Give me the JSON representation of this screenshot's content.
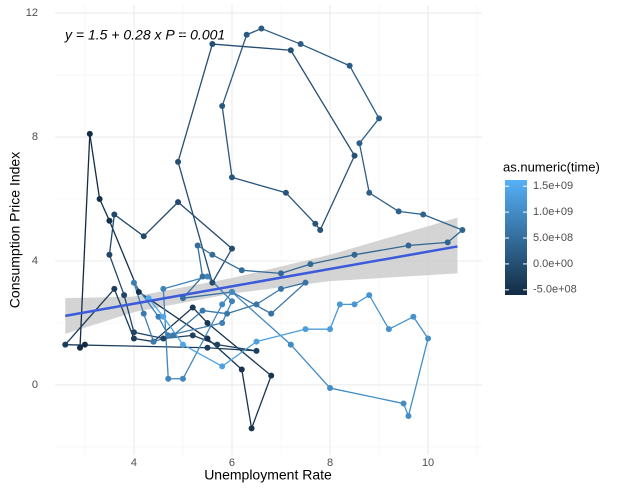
{
  "chart_data": {
    "type": "scatter",
    "annotation": "y = 1.5 + 0.28 x   P = 0.001",
    "xlabel": "Unemployment Rate",
    "ylabel": "Consumption Price Index",
    "xlim": [
      2.39,
      11.1
    ],
    "ylim": [
      -2.26,
      12.26
    ],
    "xticks": [
      4,
      6,
      8,
      10
    ],
    "yticks": [
      0,
      4,
      8,
      12
    ],
    "xminor": [
      3,
      5,
      7,
      9,
      11
    ],
    "yminor": [
      -2,
      2,
      6,
      10
    ],
    "grid": true,
    "x": [
      3.0,
      2.9,
      3.1,
      3.3,
      3.5,
      4.1,
      5.5,
      6.2,
      6.4,
      6.8,
      5.5,
      5.2,
      4.4,
      4.0,
      3.6,
      2.6,
      5.5,
      6.5,
      5.7,
      5.2,
      4.6,
      4.0,
      3.8,
      3.5,
      3.6,
      4.2,
      4.9,
      6.0,
      5.6,
      4.9,
      5.6,
      7.2,
      8.5,
      7.8,
      7.7,
      7.1,
      6.0,
      5.8,
      6.3,
      6.6,
      7.4,
      8.4,
      9.0,
      8.6,
      8.8,
      9.4,
      9.9,
      10.7,
      10.4,
      9.6,
      8.5,
      7.6,
      7.0,
      6.2,
      5.6,
      5.3,
      5.4,
      5.0,
      6.0,
      6.8,
      7.5,
      7.0,
      6.5,
      5.9,
      5.4,
      4.8,
      4.4,
      4.2,
      4.0,
      4.5,
      4.7,
      5.8,
      6.0,
      5.5,
      4.6,
      4.7,
      5.0,
      5.8,
      6.0,
      7.2,
      8.0,
      9.5,
      9.6,
      10.0,
      9.7,
      9.2,
      8.8,
      8.5,
      8.2,
      8.0,
      7.5,
      6.5,
      5.8,
      5.0,
      4.6,
      4.3
    ],
    "y": [
      1.3,
      1.2,
      8.1,
      6.0,
      5.3,
      3.0,
      1.5,
      0.5,
      -1.4,
      0.3,
      2.0,
      2.5,
      1.4,
      1.5,
      3.1,
      1.3,
      1.2,
      1.1,
      1.3,
      1.6,
      1.5,
      1.7,
      2.9,
      4.2,
      5.5,
      4.8,
      5.9,
      4.4,
      3.3,
      7.2,
      11.0,
      10.8,
      7.4,
      5.0,
      5.2,
      6.2,
      6.7,
      9.0,
      11.3,
      11.5,
      11.0,
      10.3,
      8.6,
      7.8,
      6.2,
      5.6,
      5.5,
      5.0,
      4.6,
      4.5,
      4.2,
      3.9,
      3.6,
      3.7,
      4.2,
      4.5,
      3.5,
      2.8,
      3.0,
      2.3,
      3.3,
      3.1,
      2.6,
      2.3,
      2.4,
      1.6,
      1.4,
      2.3,
      3.3,
      2.2,
      1.6,
      2.0,
      2.7,
      3.5,
      3.1,
      0.2,
      0.2,
      2.6,
      3.0,
      1.3,
      -0.1,
      -0.6,
      -1.0,
      1.5,
      2.2,
      1.8,
      2.9,
      2.6,
      2.6,
      1.8,
      1.8,
      1.4,
      0.6,
      1.3,
      2.2,
      2.8
    ],
    "time": [
      -600000000.0,
      -580000000.0,
      -560000000.0,
      -540000000.0,
      -520000000.0,
      -500000000.0,
      -480000000.0,
      -460000000.0,
      -440000000.0,
      -420000000.0,
      -400000000.0,
      -380000000.0,
      -360000000.0,
      -340000000.0,
      -320000000.0,
      -300000000.0,
      -280000000.0,
      -260000000.0,
      -240000000.0,
      -220000000.0,
      -200000000.0,
      -180000000.0,
      -160000000.0,
      -140000000.0,
      -120000000.0,
      -100000000.0,
      -80000000.0,
      -60000000.0,
      -40000000.0,
      -20000000.0,
      0,
      20000000.0,
      40000000.0,
      60000000.0,
      80000000.0,
      100000000.0,
      120000000.0,
      140000000.0,
      160000000.0,
      180000000.0,
      200000000.0,
      220000000.0,
      240000000.0,
      260000000.0,
      280000000.0,
      300000000.0,
      320000000.0,
      340000000.0,
      360000000.0,
      380000000.0,
      400000000.0,
      420000000.0,
      440000000.0,
      460000000.0,
      480000000.0,
      500000000.0,
      520000000.0,
      540000000.0,
      560000000.0,
      580000000.0,
      600000000.0,
      620000000.0,
      640000000.0,
      660000000.0,
      680000000.0,
      700000000.0,
      720000000.0,
      740000000.0,
      760000000.0,
      780000000.0,
      800000000.0,
      820000000.0,
      840000000.0,
      860000000.0,
      880000000.0,
      900000000.0,
      920000000.0,
      940000000.0,
      960000000.0,
      980000000.0,
      1000000000.0,
      1020000000.0,
      1040000000.0,
      1060000000.0,
      1080000000.0,
      1100000000.0,
      1140000000.0,
      1180000000.0,
      1220000000.0,
      1260000000.0,
      1300000000.0,
      1340000000.0,
      1380000000.0,
      1420000000.0,
      1460000000.0,
      1500000000.0
    ],
    "fit": {
      "color": "#3b5bdb",
      "x": [
        2.6,
        10.6
      ],
      "y": [
        2.23,
        4.47
      ]
    },
    "band": {
      "color": "#cccccc",
      "x": [
        2.6,
        4,
        6,
        8,
        10.6
      ],
      "lower": [
        1.65,
        2.35,
        2.95,
        3.35,
        3.6
      ],
      "upper": [
        2.8,
        2.85,
        3.45,
        4.2,
        5.4
      ]
    },
    "colorbar": {
      "title": "as.numeric(time)",
      "lim": [
        -600000000.0,
        1620000000.0
      ],
      "low": "#132B43",
      "high": "#56B1F7",
      "ticks": [
        {
          "value": 1500000000.0,
          "label": "1.5e+09"
        },
        {
          "value": 1000000000.0,
          "label": "1.0e+09"
        },
        {
          "value": 500000000.0,
          "label": "5.0e+08"
        },
        {
          "value": 0,
          "label": "0.0e+00"
        },
        {
          "value": -500000000.0,
          "label": "-5.0e+08"
        }
      ]
    }
  }
}
